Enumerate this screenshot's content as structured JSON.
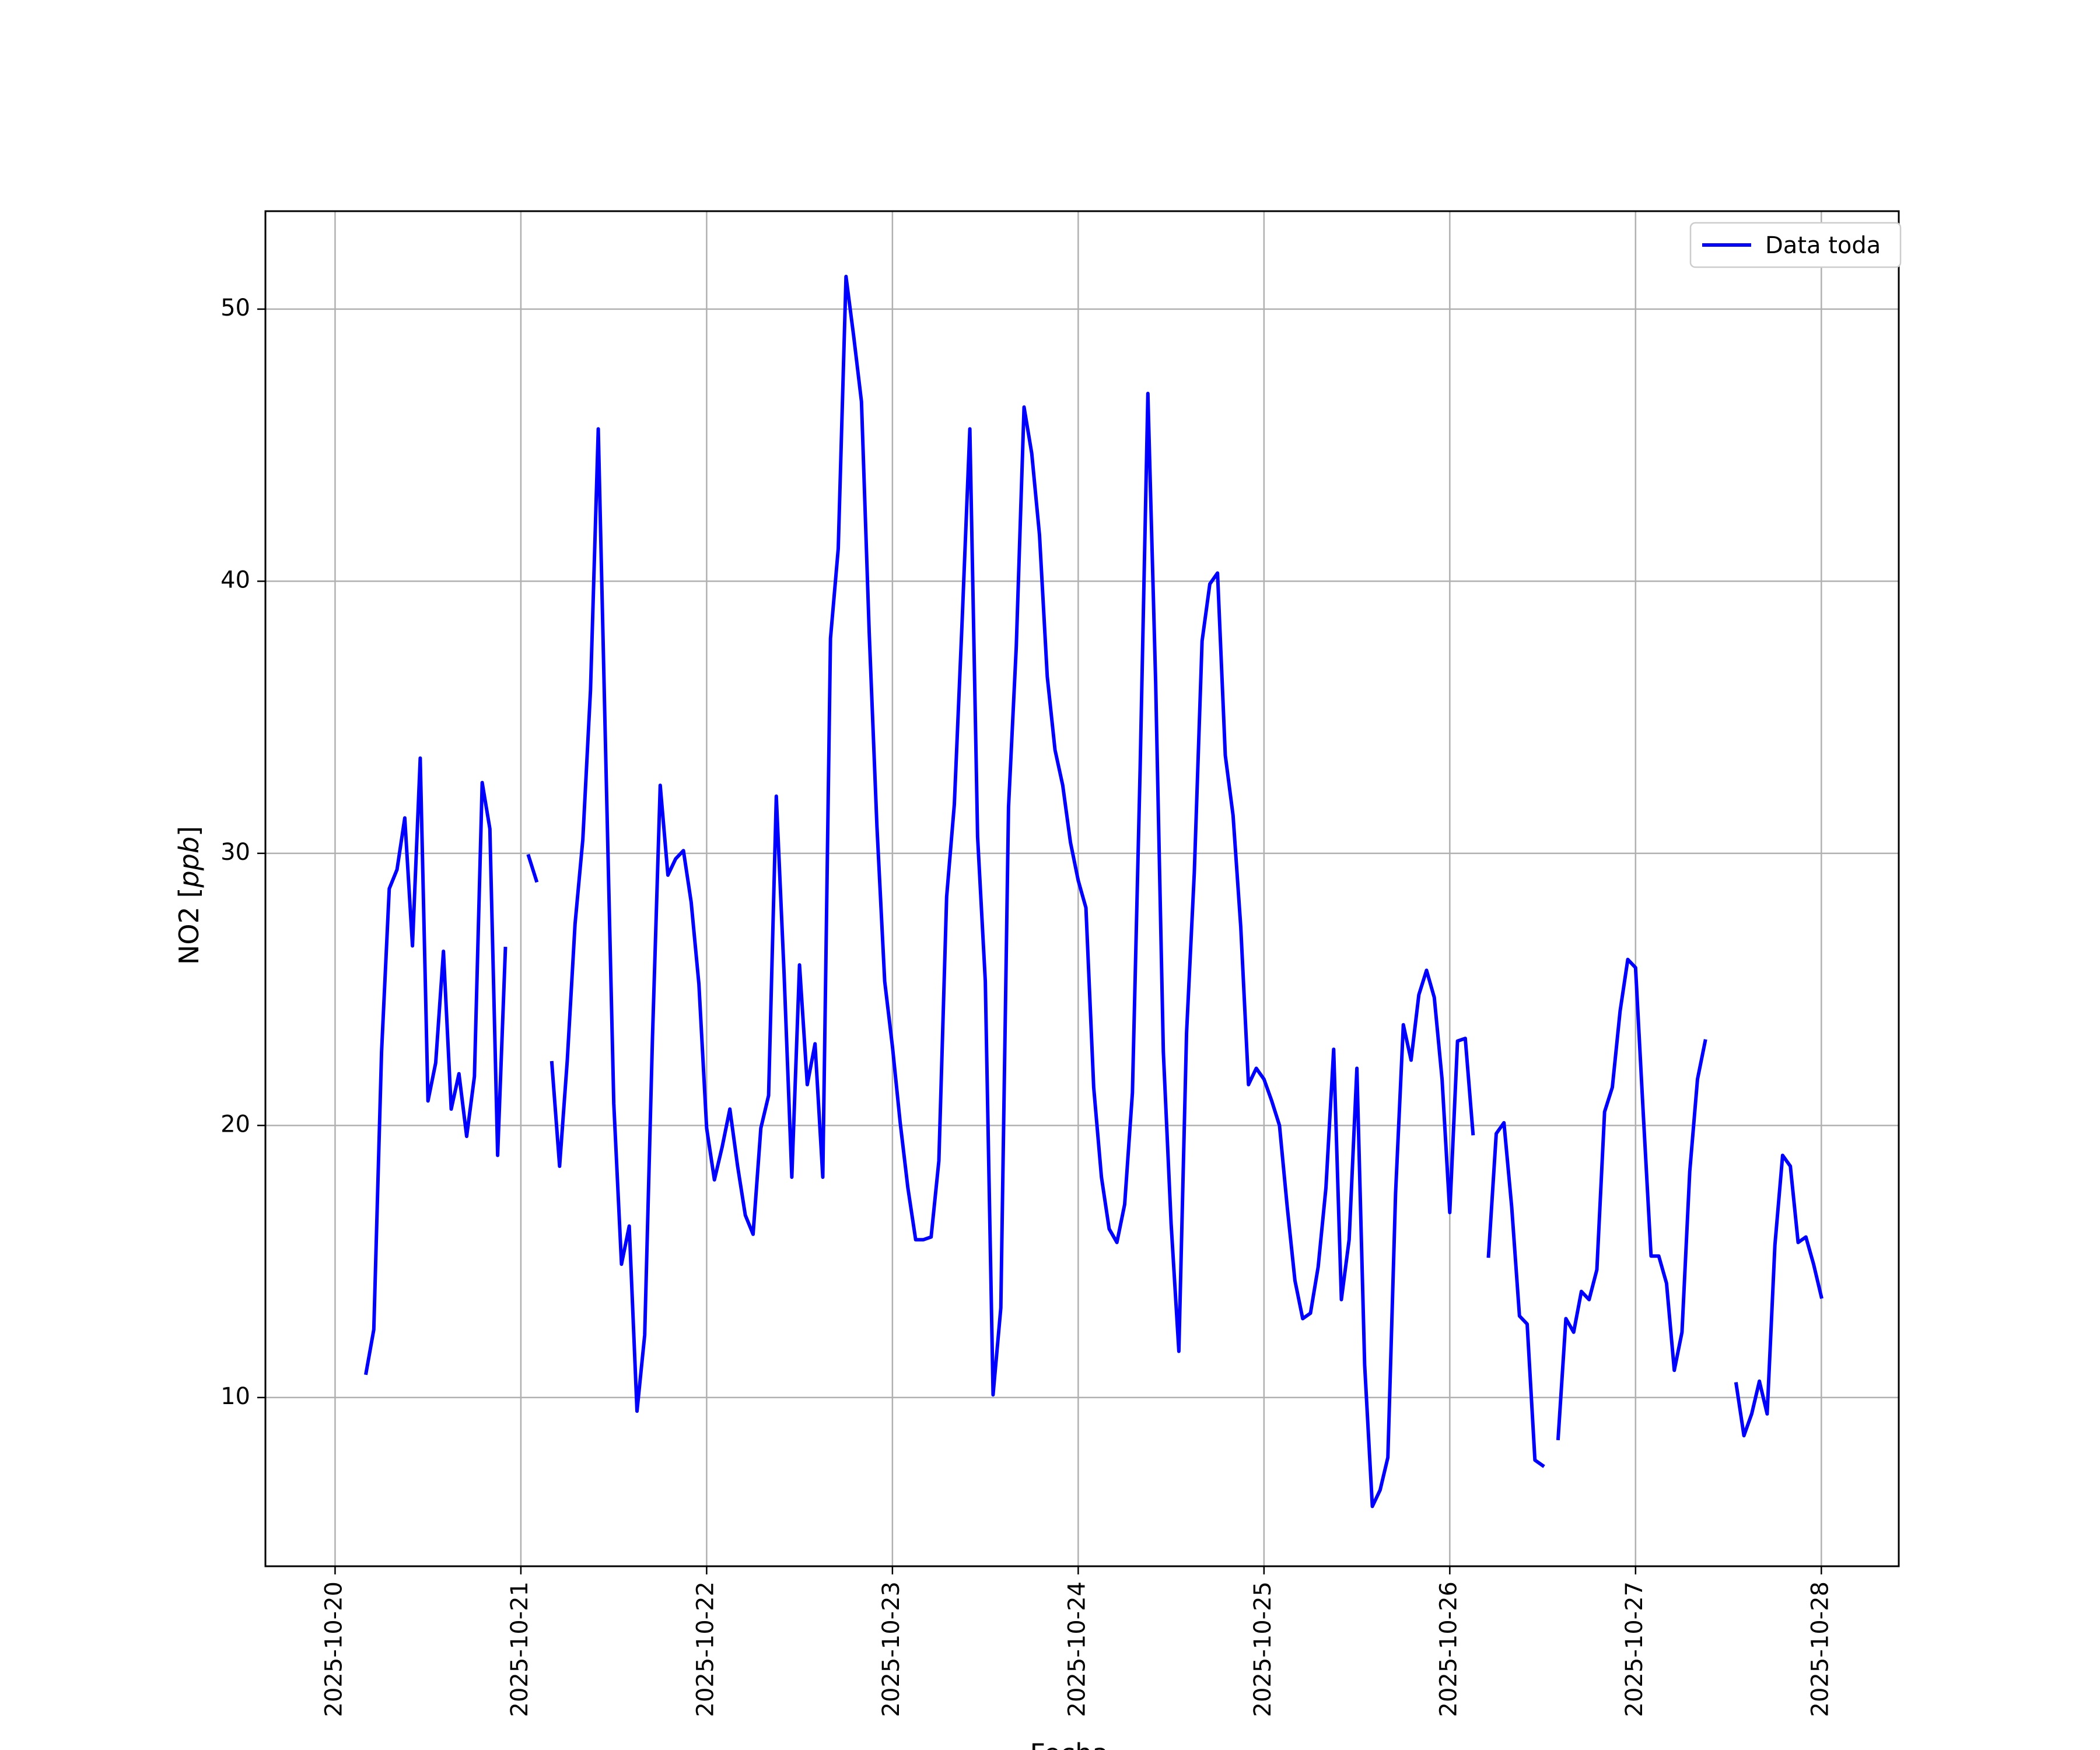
{
  "chart_data": {
    "type": "line",
    "title": "",
    "xlabel": "Fecha",
    "ylabel_prefix": "NO2 [",
    "ylabel_unit": "ppb",
    "ylabel_suffix": "]",
    "xlim": [
      "2025-10-19T15:00",
      "2025-10-28T10:00"
    ],
    "ylim": [
      3.8,
      53.6
    ],
    "grid": true,
    "legend_position": "upper right",
    "x_ticks": [
      "2025-10-20",
      "2025-10-21",
      "2025-10-22",
      "2025-10-23",
      "2025-10-24",
      "2025-10-25",
      "2025-10-26",
      "2025-10-27",
      "2025-10-28"
    ],
    "y_ticks": [
      10,
      20,
      30,
      40,
      50
    ],
    "series": [
      {
        "name": "Data toda",
        "color": "#0000ff",
        "segments": [
          [
            [
              "2025-10-20T04:00",
              10.9
            ],
            [
              "2025-10-20T05:00",
              12.5
            ],
            [
              "2025-10-20T06:00",
              22.7
            ],
            [
              "2025-10-20T07:00",
              28.7
            ],
            [
              "2025-10-20T08:00",
              29.4
            ],
            [
              "2025-10-20T09:00",
              31.3
            ],
            [
              "2025-10-20T10:00",
              26.6
            ],
            [
              "2025-10-20T11:00",
              33.5
            ],
            [
              "2025-10-20T12:00",
              20.9
            ],
            [
              "2025-10-20T13:00",
              22.3
            ],
            [
              "2025-10-20T14:00",
              26.4
            ],
            [
              "2025-10-20T15:00",
              20.6
            ],
            [
              "2025-10-20T16:00",
              21.9
            ],
            [
              "2025-10-20T17:00",
              19.6
            ],
            [
              "2025-10-20T18:00",
              21.8
            ],
            [
              "2025-10-20T19:00",
              32.6
            ],
            [
              "2025-10-20T20:00",
              30.9
            ],
            [
              "2025-10-20T21:00",
              18.9
            ],
            [
              "2025-10-20T22:00",
              26.5
            ]
          ],
          [
            [
              "2025-10-21T01:00",
              29.9
            ],
            [
              "2025-10-21T02:00",
              29.0
            ]
          ],
          [
            [
              "2025-10-21T04:00",
              22.3
            ],
            [
              "2025-10-21T05:00",
              18.5
            ],
            [
              "2025-10-21T06:00",
              22.4
            ],
            [
              "2025-10-21T07:00",
              27.4
            ],
            [
              "2025-10-21T08:00",
              30.5
            ],
            [
              "2025-10-21T09:00",
              36.0
            ],
            [
              "2025-10-21T10:00",
              45.6
            ],
            [
              "2025-10-21T11:00",
              33.1
            ],
            [
              "2025-10-21T12:00",
              20.8
            ],
            [
              "2025-10-21T13:00",
              14.9
            ],
            [
              "2025-10-21T14:00",
              16.3
            ],
            [
              "2025-10-21T15:00",
              9.5
            ],
            [
              "2025-10-21T16:00",
              12.3
            ],
            [
              "2025-10-21T17:00",
              23.2
            ],
            [
              "2025-10-21T18:00",
              32.5
            ],
            [
              "2025-10-21T19:00",
              29.2
            ],
            [
              "2025-10-21T20:00",
              29.8
            ],
            [
              "2025-10-21T21:00",
              30.1
            ],
            [
              "2025-10-21T22:00",
              28.2
            ],
            [
              "2025-10-21T23:00",
              25.2
            ],
            [
              "2025-10-22T00:00",
              19.9
            ],
            [
              "2025-10-22T01:00",
              18.0
            ],
            [
              "2025-10-22T02:00",
              19.2
            ],
            [
              "2025-10-22T03:00",
              20.6
            ],
            [
              "2025-10-22T04:00",
              18.5
            ],
            [
              "2025-10-22T05:00",
              16.7
            ],
            [
              "2025-10-22T06:00",
              16.0
            ],
            [
              "2025-10-22T07:00",
              19.9
            ],
            [
              "2025-10-22T08:00",
              21.1
            ],
            [
              "2025-10-22T09:00",
              32.1
            ],
            [
              "2025-10-22T10:00",
              25.6
            ],
            [
              "2025-10-22T11:00",
              18.1
            ],
            [
              "2025-10-22T12:00",
              25.9
            ],
            [
              "2025-10-22T13:00",
              21.5
            ],
            [
              "2025-10-22T14:00",
              23.0
            ],
            [
              "2025-10-22T15:00",
              18.1
            ],
            [
              "2025-10-22T16:00",
              37.9
            ],
            [
              "2025-10-22T17:00",
              41.2
            ],
            [
              "2025-10-22T18:00",
              51.2
            ],
            [
              "2025-10-22T19:00",
              49.0
            ],
            [
              "2025-10-22T20:00",
              46.6
            ],
            [
              "2025-10-22T21:00",
              38.1
            ],
            [
              "2025-10-22T22:00",
              31.0
            ],
            [
              "2025-10-22T23:00",
              25.3
            ],
            [
              "2025-10-23T00:00",
              22.9
            ],
            [
              "2025-10-23T01:00",
              20.1
            ],
            [
              "2025-10-23T02:00",
              17.7
            ],
            [
              "2025-10-23T03:00",
              15.8
            ],
            [
              "2025-10-23T04:00",
              15.8
            ],
            [
              "2025-10-23T05:00",
              15.9
            ],
            [
              "2025-10-23T06:00",
              18.7
            ],
            [
              "2025-10-23T07:00",
              28.4
            ],
            [
              "2025-10-23T08:00",
              31.8
            ],
            [
              "2025-10-23T09:00",
              38.5
            ],
            [
              "2025-10-23T10:00",
              45.6
            ],
            [
              "2025-10-23T11:00",
              30.6
            ],
            [
              "2025-10-23T12:00",
              25.3
            ],
            [
              "2025-10-23T13:00",
              10.1
            ],
            [
              "2025-10-23T14:00",
              13.3
            ],
            [
              "2025-10-23T15:00",
              31.7
            ],
            [
              "2025-10-23T16:00",
              37.6
            ],
            [
              "2025-10-23T17:00",
              46.4
            ],
            [
              "2025-10-23T18:00",
              44.7
            ],
            [
              "2025-10-23T19:00",
              41.7
            ],
            [
              "2025-10-23T20:00",
              36.5
            ],
            [
              "2025-10-23T21:00",
              33.8
            ],
            [
              "2025-10-23T22:00",
              32.5
            ],
            [
              "2025-10-23T23:00",
              30.4
            ],
            [
              "2025-10-24T00:00",
              29.0
            ],
            [
              "2025-10-24T01:00",
              28.0
            ],
            [
              "2025-10-24T02:00",
              21.4
            ],
            [
              "2025-10-24T03:00",
              18.1
            ],
            [
              "2025-10-24T04:00",
              16.2
            ],
            [
              "2025-10-24T05:00",
              15.7
            ],
            [
              "2025-10-24T06:00",
              17.1
            ],
            [
              "2025-10-24T07:00",
              21.2
            ],
            [
              "2025-10-24T08:00",
              33.1
            ],
            [
              "2025-10-24T09:00",
              46.9
            ],
            [
              "2025-10-24T10:00",
              36.3
            ],
            [
              "2025-10-24T11:00",
              22.7
            ],
            [
              "2025-10-24T12:00",
              16.4
            ],
            [
              "2025-10-24T13:00",
              11.7
            ],
            [
              "2025-10-24T14:00",
              23.4
            ],
            [
              "2025-10-24T15:00",
              29.3
            ],
            [
              "2025-10-24T16:00",
              37.8
            ],
            [
              "2025-10-24T17:00",
              39.9
            ],
            [
              "2025-10-24T18:00",
              40.3
            ],
            [
              "2025-10-24T19:00",
              33.6
            ],
            [
              "2025-10-24T20:00",
              31.4
            ],
            [
              "2025-10-24T21:00",
              27.3
            ],
            [
              "2025-10-24T22:00",
              21.5
            ],
            [
              "2025-10-24T23:00",
              22.1
            ],
            [
              "2025-10-25T00:00",
              21.7
            ],
            [
              "2025-10-25T01:00",
              20.9
            ],
            [
              "2025-10-25T02:00",
              20.0
            ],
            [
              "2025-10-25T03:00",
              17.0
            ],
            [
              "2025-10-25T04:00",
              14.3
            ],
            [
              "2025-10-25T05:00",
              12.9
            ],
            [
              "2025-10-25T06:00",
              13.1
            ],
            [
              "2025-10-25T07:00",
              14.8
            ],
            [
              "2025-10-25T08:00",
              17.7
            ],
            [
              "2025-10-25T09:00",
              22.8
            ],
            [
              "2025-10-25T10:00",
              13.6
            ],
            [
              "2025-10-25T11:00",
              15.8
            ],
            [
              "2025-10-25T12:00",
              22.1
            ],
            [
              "2025-10-25T13:00",
              11.2
            ],
            [
              "2025-10-25T14:00",
              6.0
            ],
            [
              "2025-10-25T15:00",
              6.6
            ],
            [
              "2025-10-25T16:00",
              7.8
            ],
            [
              "2025-10-25T17:00",
              17.5
            ],
            [
              "2025-10-25T18:00",
              23.7
            ],
            [
              "2025-10-25T19:00",
              22.4
            ],
            [
              "2025-10-25T20:00",
              24.8
            ],
            [
              "2025-10-25T21:00",
              25.7
            ],
            [
              "2025-10-25T22:00",
              24.7
            ],
            [
              "2025-10-25T23:00",
              21.7
            ],
            [
              "2025-10-26T00:00",
              16.8
            ],
            [
              "2025-10-26T01:00",
              23.1
            ],
            [
              "2025-10-26T02:00",
              23.2
            ],
            [
              "2025-10-26T03:00",
              19.7
            ]
          ],
          [
            [
              "2025-10-26T05:00",
              15.2
            ],
            [
              "2025-10-26T06:00",
              19.7
            ],
            [
              "2025-10-26T07:00",
              20.1
            ],
            [
              "2025-10-26T08:00",
              17.0
            ],
            [
              "2025-10-26T09:00",
              13.0
            ],
            [
              "2025-10-26T10:00",
              12.7
            ],
            [
              "2025-10-26T11:00",
              7.7
            ],
            [
              "2025-10-26T12:00",
              7.5
            ]
          ],
          [
            [
              "2025-10-26T14:00",
              8.5
            ],
            [
              "2025-10-26T15:00",
              12.9
            ],
            [
              "2025-10-26T16:00",
              12.4
            ],
            [
              "2025-10-26T17:00",
              13.9
            ],
            [
              "2025-10-26T18:00",
              13.6
            ],
            [
              "2025-10-26T19:00",
              14.7
            ],
            [
              "2025-10-26T20:00",
              20.5
            ],
            [
              "2025-10-26T21:00",
              21.4
            ],
            [
              "2025-10-26T22:00",
              24.2
            ],
            [
              "2025-10-26T23:00",
              26.1
            ],
            [
              "2025-10-27T00:00",
              25.8
            ],
            [
              "2025-10-27T01:00",
              20.4
            ],
            [
              "2025-10-27T02:00",
              15.2
            ],
            [
              "2025-10-27T03:00",
              15.2
            ],
            [
              "2025-10-27T04:00",
              14.2
            ],
            [
              "2025-10-27T05:00",
              11.0
            ],
            [
              "2025-10-27T06:00",
              12.4
            ],
            [
              "2025-10-27T07:00",
              18.3
            ],
            [
              "2025-10-27T08:00",
              21.7
            ],
            [
              "2025-10-27T09:00",
              23.1
            ]
          ],
          [
            [
              "2025-10-27T13:00",
              10.5
            ],
            [
              "2025-10-27T14:00",
              8.6
            ],
            [
              "2025-10-27T15:00",
              9.4
            ],
            [
              "2025-10-27T16:00",
              10.6
            ],
            [
              "2025-10-27T17:00",
              9.4
            ],
            [
              "2025-10-27T18:00",
              15.6
            ],
            [
              "2025-10-27T19:00",
              18.9
            ],
            [
              "2025-10-27T20:00",
              18.5
            ],
            [
              "2025-10-27T21:00",
              15.7
            ],
            [
              "2025-10-27T22:00",
              15.9
            ],
            [
              "2025-10-27T23:00",
              14.9
            ],
            [
              "2025-10-28T00:00",
              13.7
            ]
          ]
        ]
      }
    ]
  }
}
